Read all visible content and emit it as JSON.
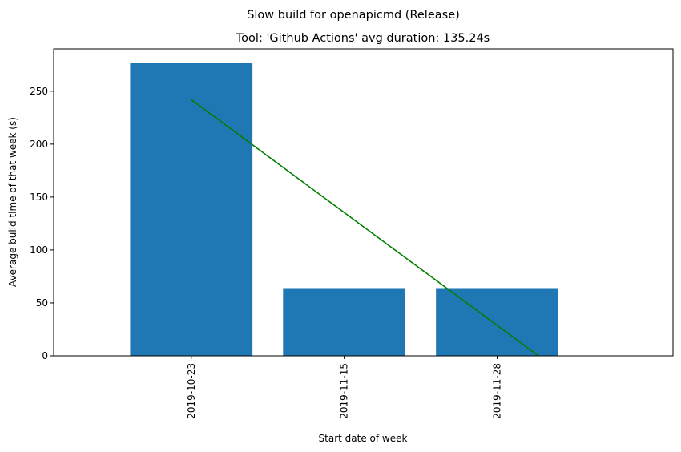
{
  "chart_data": {
    "type": "bar",
    "suptitle": "Slow build for openapicmd (Release)",
    "title": "Tool: 'Github Actions' avg duration: 135.24s",
    "xlabel": "Start date of week",
    "ylabel": "Average build time of that week (s)",
    "categories": [
      "2019-10-23",
      "2019-11-15",
      "2019-11-28"
    ],
    "values": [
      277,
      64,
      64
    ],
    "bar_color": "#1f77b4",
    "trend_line": {
      "color": "#008000",
      "start": {
        "category_index": 0,
        "y": 242
      },
      "end": {
        "category_index": 2.27,
        "y": 0
      }
    },
    "x_index_range": [
      -0.9,
      3.15
    ],
    "ylim": [
      0,
      290
    ],
    "yticks": [
      0,
      50,
      100,
      150,
      200,
      250
    ],
    "grid": false,
    "legend": "none"
  }
}
